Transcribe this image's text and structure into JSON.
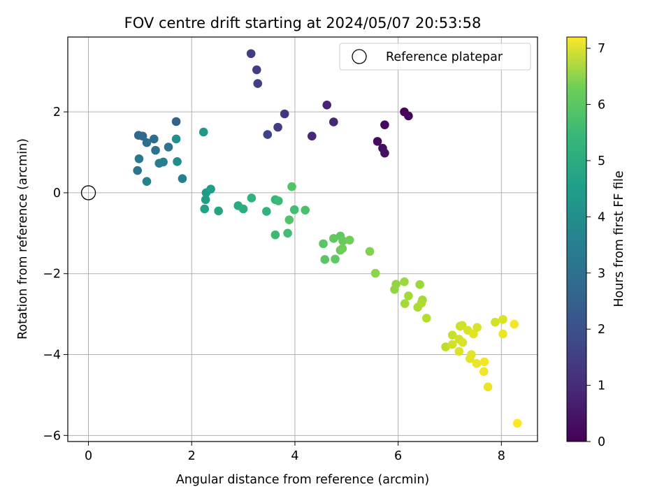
{
  "chart_data": {
    "type": "scatter",
    "title": "FOV centre drift starting at 2024/05/07 20:53:58",
    "xlabel": "Angular distance from reference (arcmin)",
    "ylabel": "Rotation from reference (arcmin)",
    "xlim": [
      -0.4,
      8.7
    ],
    "ylim": [
      -6.15,
      3.85
    ],
    "xticks": [
      0,
      2,
      4,
      6,
      8
    ],
    "xtick_labels": [
      "0",
      "2",
      "4",
      "6",
      "8"
    ],
    "yticks": [
      -6,
      -4,
      -2,
      0,
      2
    ],
    "ytick_labels": [
      "−6",
      "−4",
      "−2",
      "0",
      "2"
    ],
    "grid": true,
    "legend": {
      "position": "top-right",
      "entries": [
        "Reference platepar"
      ]
    },
    "reference_point": {
      "x": 0,
      "y": 0
    },
    "colorbar": {
      "label": "Hours from first FF file",
      "colormap": "viridis",
      "range": [
        0,
        7.2
      ],
      "ticks": [
        0,
        1,
        2,
        3,
        4,
        5,
        6,
        7
      ],
      "tick_labels": [
        "0",
        "1",
        "2",
        "3",
        "4",
        "5",
        "6",
        "7"
      ]
    },
    "series": [
      {
        "points": [
          {
            "x": 6.12,
            "y": 2.0,
            "c": 0.05
          },
          {
            "x": 6.2,
            "y": 1.9,
            "c": 0.1
          },
          {
            "x": 5.74,
            "y": 1.68,
            "c": 0.15
          },
          {
            "x": 5.6,
            "y": 1.27,
            "c": 0.2
          },
          {
            "x": 5.7,
            "y": 1.1,
            "c": 0.25
          },
          {
            "x": 5.74,
            "y": 0.98,
            "c": 0.3
          },
          {
            "x": 4.62,
            "y": 2.17,
            "c": 0.7
          },
          {
            "x": 4.75,
            "y": 1.75,
            "c": 0.75
          },
          {
            "x": 4.33,
            "y": 1.4,
            "c": 0.8
          },
          {
            "x": 3.15,
            "y": 3.44,
            "c": 1.3
          },
          {
            "x": 3.26,
            "y": 3.04,
            "c": 1.3
          },
          {
            "x": 3.28,
            "y": 2.7,
            "c": 1.35
          },
          {
            "x": 3.8,
            "y": 1.95,
            "c": 1.1
          },
          {
            "x": 3.67,
            "y": 1.62,
            "c": 1.3
          },
          {
            "x": 3.47,
            "y": 1.44,
            "c": 1.4
          },
          {
            "x": 1.7,
            "y": 1.76,
            "c": 2.2
          },
          {
            "x": 0.97,
            "y": 1.42,
            "c": 2.4
          },
          {
            "x": 1.05,
            "y": 1.4,
            "c": 2.5
          },
          {
            "x": 1.27,
            "y": 1.33,
            "c": 2.55
          },
          {
            "x": 1.13,
            "y": 1.24,
            "c": 2.6
          },
          {
            "x": 1.55,
            "y": 1.13,
            "c": 2.7
          },
          {
            "x": 1.3,
            "y": 1.05,
            "c": 2.7
          },
          {
            "x": 1.7,
            "y": 1.33,
            "c": 3.6
          },
          {
            "x": 0.98,
            "y": 0.84,
            "c": 2.9
          },
          {
            "x": 1.37,
            "y": 0.73,
            "c": 3.0
          },
          {
            "x": 1.45,
            "y": 0.76,
            "c": 3.1
          },
          {
            "x": 1.72,
            "y": 0.77,
            "c": 3.5
          },
          {
            "x": 0.95,
            "y": 0.55,
            "c": 2.8
          },
          {
            "x": 1.13,
            "y": 0.28,
            "c": 3.2
          },
          {
            "x": 1.82,
            "y": 0.35,
            "c": 3.1
          },
          {
            "x": 2.23,
            "y": 1.5,
            "c": 3.8
          },
          {
            "x": 2.28,
            "y": 0.0,
            "c": 3.9
          },
          {
            "x": 2.37,
            "y": 0.09,
            "c": 4.0
          },
          {
            "x": 2.27,
            "y": -0.17,
            "c": 4.0
          },
          {
            "x": 2.25,
            "y": -0.4,
            "c": 4.1
          },
          {
            "x": 2.52,
            "y": -0.45,
            "c": 4.2
          },
          {
            "x": 2.9,
            "y": -0.32,
            "c": 4.4
          },
          {
            "x": 3.0,
            "y": -0.4,
            "c": 4.5
          },
          {
            "x": 3.16,
            "y": -0.13,
            "c": 4.6
          },
          {
            "x": 3.45,
            "y": -0.46,
            "c": 4.6
          },
          {
            "x": 3.62,
            "y": -0.17,
            "c": 4.8
          },
          {
            "x": 3.68,
            "y": -0.2,
            "c": 4.9
          },
          {
            "x": 3.62,
            "y": -1.04,
            "c": 4.9
          },
          {
            "x": 3.86,
            "y": -1.0,
            "c": 5.0
          },
          {
            "x": 3.94,
            "y": 0.15,
            "c": 5.2
          },
          {
            "x": 3.99,
            "y": -0.42,
            "c": 5.0
          },
          {
            "x": 4.2,
            "y": -0.43,
            "c": 5.1
          },
          {
            "x": 3.89,
            "y": -0.67,
            "c": 5.2
          },
          {
            "x": 4.55,
            "y": -1.26,
            "c": 5.3
          },
          {
            "x": 4.58,
            "y": -1.65,
            "c": 5.3
          },
          {
            "x": 4.75,
            "y": -1.13,
            "c": 5.4
          },
          {
            "x": 4.88,
            "y": -1.07,
            "c": 5.4
          },
          {
            "x": 4.93,
            "y": -1.19,
            "c": 5.5
          },
          {
            "x": 5.06,
            "y": -1.17,
            "c": 5.6
          },
          {
            "x": 4.78,
            "y": -1.64,
            "c": 5.4
          },
          {
            "x": 4.88,
            "y": -1.42,
            "c": 5.5
          },
          {
            "x": 4.92,
            "y": -1.38,
            "c": 5.6
          },
          {
            "x": 5.45,
            "y": -1.45,
            "c": 5.8
          },
          {
            "x": 5.56,
            "y": -1.99,
            "c": 5.9
          },
          {
            "x": 5.96,
            "y": -2.26,
            "c": 6.0
          },
          {
            "x": 5.93,
            "y": -2.39,
            "c": 6.0
          },
          {
            "x": 6.12,
            "y": -2.2,
            "c": 6.1
          },
          {
            "x": 6.42,
            "y": -2.27,
            "c": 6.1
          },
          {
            "x": 6.2,
            "y": -2.55,
            "c": 6.2
          },
          {
            "x": 6.13,
            "y": -2.74,
            "c": 6.2
          },
          {
            "x": 6.47,
            "y": -2.65,
            "c": 6.2
          },
          {
            "x": 6.45,
            "y": -2.73,
            "c": 6.3
          },
          {
            "x": 6.38,
            "y": -2.83,
            "c": 6.3
          },
          {
            "x": 6.55,
            "y": -3.1,
            "c": 6.4
          },
          {
            "x": 6.92,
            "y": -3.81,
            "c": 6.5
          },
          {
            "x": 7.05,
            "y": -3.52,
            "c": 6.6
          },
          {
            "x": 7.05,
            "y": -3.75,
            "c": 6.7
          },
          {
            "x": 7.2,
            "y": -3.3,
            "c": 6.6
          },
          {
            "x": 7.24,
            "y": -3.28,
            "c": 6.7
          },
          {
            "x": 7.18,
            "y": -3.62,
            "c": 6.7
          },
          {
            "x": 7.25,
            "y": -3.7,
            "c": 6.8
          },
          {
            "x": 7.18,
            "y": -3.92,
            "c": 6.8
          },
          {
            "x": 7.35,
            "y": -3.4,
            "c": 6.8
          },
          {
            "x": 7.46,
            "y": -3.49,
            "c": 6.9
          },
          {
            "x": 7.53,
            "y": -3.33,
            "c": 6.8
          },
          {
            "x": 7.42,
            "y": -4.0,
            "c": 6.9
          },
          {
            "x": 7.39,
            "y": -4.1,
            "c": 6.9
          },
          {
            "x": 7.52,
            "y": -4.22,
            "c": 7.0
          },
          {
            "x": 7.67,
            "y": -4.18,
            "c": 7.1
          },
          {
            "x": 7.66,
            "y": -4.42,
            "c": 7.1
          },
          {
            "x": 7.74,
            "y": -4.8,
            "c": 7.0
          },
          {
            "x": 7.88,
            "y": -3.2,
            "c": 6.7
          },
          {
            "x": 8.03,
            "y": -3.13,
            "c": 6.8
          },
          {
            "x": 8.03,
            "y": -3.49,
            "c": 7.0
          },
          {
            "x": 8.25,
            "y": -3.25,
            "c": 7.1
          },
          {
            "x": 8.31,
            "y": -5.7,
            "c": 7.2
          }
        ]
      }
    ]
  }
}
